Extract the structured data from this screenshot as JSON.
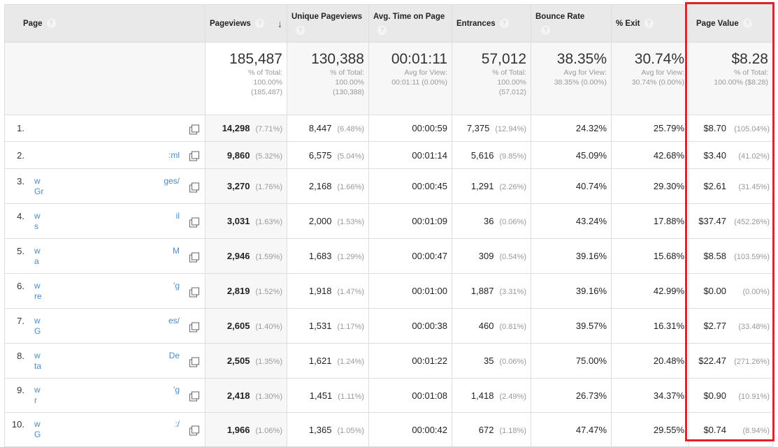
{
  "columns": [
    {
      "label": "Page",
      "help": "?"
    },
    {
      "label": "Pageviews",
      "help": "?",
      "sort": "↓"
    },
    {
      "label": "Unique Pageviews",
      "help": "?"
    },
    {
      "label": "Avg. Time on Page",
      "help": "?"
    },
    {
      "label": "Entrances",
      "help": "?"
    },
    {
      "label": "Bounce Rate",
      "help": "?"
    },
    {
      "label": "% Exit",
      "help": "?"
    },
    {
      "label": "Page Value",
      "help": "?"
    }
  ],
  "totals": [
    {
      "value": "185,487",
      "l1": "% of Total:",
      "l2": "100.00%",
      "l3": "(185,487)"
    },
    {
      "value": "130,388",
      "l1": "% of Total:",
      "l2": "100.00%",
      "l3": "(130,388)"
    },
    {
      "value": "00:01:11",
      "l1": "Avg for View:",
      "l2": "00:01:11 (0.00%)",
      "l3": ""
    },
    {
      "value": "57,012",
      "l1": "% of Total:",
      "l2": "100.00%",
      "l3": "(57,012)"
    },
    {
      "value": "38.35%",
      "l1": "Avg for View:",
      "l2": "38.35% (0.00%)",
      "l3": ""
    },
    {
      "value": "30.74%",
      "l1": "Avg for View:",
      "l2": "30.74% (0.00%)",
      "l3": ""
    },
    {
      "value": "$8.28",
      "l1": "% of Total:",
      "l2": "100.00% ($8.28)",
      "l3": ""
    }
  ],
  "rows": [
    {
      "n": "1.",
      "p1": "",
      "p1r": "",
      "p2": "",
      "pv": "14,298",
      "pvp": "(7.71%)",
      "u": "8,447",
      "up": "(6.48%)",
      "t": "00:00:59",
      "e": "7,375",
      "ep": "(12.94%)",
      "b": "24.32%",
      "x": "25.79%",
      "v": "$8.70",
      "vp": "(105.04%)"
    },
    {
      "n": "2.",
      "p1": "",
      "p1r": ":ml",
      "p2": "",
      "pv": "9,860",
      "pvp": "(5.32%)",
      "u": "6,575",
      "up": "(5.04%)",
      "t": "00:01:14",
      "e": "5,616",
      "ep": "(9.85%)",
      "b": "45.09%",
      "x": "42.68%",
      "v": "$3.40",
      "vp": "(41.02%)"
    },
    {
      "n": "3.",
      "p1": "w",
      "p1r": "ges/",
      "p2": "Gr",
      "pv": "3,270",
      "pvp": "(1.76%)",
      "u": "2,168",
      "up": "(1.66%)",
      "t": "00:00:45",
      "e": "1,291",
      "ep": "(2.26%)",
      "b": "40.74%",
      "x": "29.30%",
      "v": "$2.61",
      "vp": "(31.45%)"
    },
    {
      "n": "4.",
      "p1": "w",
      "p1r": "il",
      "p2": "s",
      "pv": "3,031",
      "pvp": "(1.63%)",
      "u": "2,000",
      "up": "(1.53%)",
      "t": "00:01:09",
      "e": "36",
      "ep": "(0.06%)",
      "b": "43.24%",
      "x": "17.88%",
      "v": "$37.47",
      "vp": "(452.26%)"
    },
    {
      "n": "5.",
      "p1": "w",
      "p1r": "M",
      "p2": "a",
      "pv": "2,946",
      "pvp": "(1.59%)",
      "u": "1,683",
      "up": "(1.29%)",
      "t": "00:00:47",
      "e": "309",
      "ep": "(0.54%)",
      "b": "39.16%",
      "x": "15.68%",
      "v": "$8.58",
      "vp": "(103.59%)"
    },
    {
      "n": "6.",
      "p1": "w",
      "p1r": "'g",
      "p2": "re",
      "pv": "2,819",
      "pvp": "(1.52%)",
      "u": "1,918",
      "up": "(1.47%)",
      "t": "00:01:00",
      "e": "1,887",
      "ep": "(3.31%)",
      "b": "39.16%",
      "x": "42.99%",
      "v": "$0.00",
      "vp": "(0.00%)"
    },
    {
      "n": "7.",
      "p1": "w",
      "p1r": "es/",
      "p2": "G",
      "pv": "2,605",
      "pvp": "(1.40%)",
      "u": "1,531",
      "up": "(1.17%)",
      "t": "00:00:38",
      "e": "460",
      "ep": "(0.81%)",
      "b": "39.57%",
      "x": "16.31%",
      "v": "$2.77",
      "vp": "(33.48%)"
    },
    {
      "n": "8.",
      "p1": "w",
      "p1r": "De",
      "p2": "ta",
      "pv": "2,505",
      "pvp": "(1.35%)",
      "u": "1,621",
      "up": "(1.24%)",
      "t": "00:01:22",
      "e": "35",
      "ep": "(0.06%)",
      "b": "75.00%",
      "x": "20.48%",
      "v": "$22.47",
      "vp": "(271.26%)"
    },
    {
      "n": "9.",
      "p1": "w",
      "p1r": "'g",
      "p2": "r",
      "pv": "2,418",
      "pvp": "(1.30%)",
      "u": "1,451",
      "up": "(1.11%)",
      "t": "00:01:08",
      "e": "1,418",
      "ep": "(2.49%)",
      "b": "26.73%",
      "x": "34.37%",
      "v": "$0.90",
      "vp": "(10.91%)"
    },
    {
      "n": "10.",
      "p1": "w",
      "p1r": ":/",
      "p2": "G",
      "pv": "1,966",
      "pvp": "(1.06%)",
      "u": "1,365",
      "up": "(1.05%)",
      "t": "00:00:42",
      "e": "672",
      "ep": "(1.18%)",
      "b": "47.47%",
      "x": "29.55%",
      "v": "$0.74",
      "vp": "(8.94%)"
    }
  ],
  "highlight_color": "#e5202a",
  "link_color": "#4a8cc7"
}
